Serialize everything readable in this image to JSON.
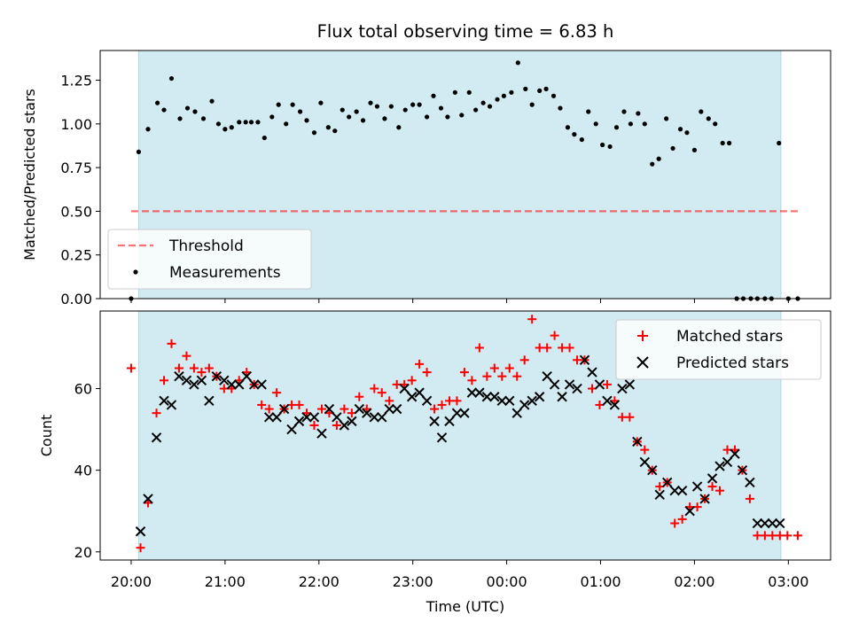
{
  "title": "Flux total observing time = 6.83 h",
  "colors": {
    "span": "#add8e6",
    "threshold": "#ff0000",
    "measurement": "#000000",
    "matched": "#ff0000",
    "predicted": "#000000"
  },
  "chart_data": [
    {
      "type": "scatter",
      "title": "Flux total observing time = 6.83 h",
      "xlabel": "",
      "ylabel": "Matched/Predicted stars",
      "ylim": [
        0,
        1.42
      ],
      "yticks": [
        0,
        0.25,
        0.5,
        0.75,
        1.0,
        1.25
      ],
      "ytick_labels": [
        "0.00",
        "0.25",
        "0.50",
        "0.75",
        "1.00",
        "1.25"
      ],
      "x_unit": "hours since 20:00 UTC",
      "xlim": [
        -0.33,
        7.45
      ],
      "xticks": [
        0,
        1,
        2,
        3,
        4,
        5,
        6,
        7
      ],
      "xtick_labels": [
        "20:00",
        "21:00",
        "22:00",
        "23:00",
        "00:00",
        "01:00",
        "02:00",
        "03:00"
      ],
      "shaded_span": [
        0.08,
        6.92
      ],
      "legend": {
        "position": "lower-left",
        "entries": [
          "Threshold",
          "Measurements"
        ]
      },
      "threshold": {
        "name": "Threshold",
        "value": 0.5,
        "x_range": [
          0,
          7.1
        ]
      },
      "series": [
        {
          "name": "Measurements",
          "x": [
            0.0,
            0.08,
            0.18,
            0.28,
            0.35,
            0.43,
            0.52,
            0.6,
            0.68,
            0.77,
            0.86,
            0.93,
            1.0,
            1.07,
            1.15,
            1.22,
            1.28,
            1.35,
            1.42,
            1.5,
            1.57,
            1.65,
            1.72,
            1.8,
            1.87,
            1.95,
            2.02,
            2.1,
            2.17,
            2.25,
            2.32,
            2.4,
            2.47,
            2.55,
            2.62,
            2.7,
            2.77,
            2.85,
            2.92,
            3.0,
            3.07,
            3.15,
            3.22,
            3.3,
            3.37,
            3.45,
            3.52,
            3.6,
            3.67,
            3.75,
            3.82,
            3.9,
            3.97,
            4.05,
            4.12,
            4.2,
            4.27,
            4.35,
            4.42,
            4.5,
            4.57,
            4.65,
            4.72,
            4.8,
            4.87,
            4.95,
            5.02,
            5.1,
            5.17,
            5.25,
            5.32,
            5.4,
            5.47,
            5.55,
            5.62,
            5.7,
            5.77,
            5.85,
            5.92,
            6.0,
            6.07,
            6.15,
            6.22,
            6.3,
            6.37,
            6.45,
            6.52,
            6.6,
            6.67,
            6.75,
            6.82,
            6.9,
            7.0,
            7.1
          ],
          "y": [
            0.0,
            0.84,
            0.97,
            1.12,
            1.08,
            1.26,
            1.03,
            1.09,
            1.07,
            1.03,
            1.13,
            1.0,
            0.97,
            0.98,
            1.01,
            1.01,
            1.01,
            1.01,
            0.92,
            1.04,
            1.11,
            1.0,
            1.11,
            1.07,
            1.02,
            0.95,
            1.12,
            0.98,
            0.96,
            1.08,
            1.04,
            1.07,
            1.02,
            1.12,
            1.1,
            1.03,
            1.1,
            0.98,
            1.08,
            1.11,
            1.11,
            1.04,
            1.16,
            1.09,
            1.04,
            1.18,
            1.05,
            1.18,
            1.08,
            1.12,
            1.1,
            1.14,
            1.16,
            1.18,
            1.35,
            1.2,
            1.11,
            1.19,
            1.2,
            1.16,
            1.09,
            0.98,
            0.94,
            0.91,
            1.07,
            1.0,
            0.88,
            0.87,
            0.98,
            1.07,
            1.0,
            1.06,
            1.0,
            0.77,
            0.8,
            1.03,
            0.86,
            0.97,
            0.95,
            0.85,
            1.07,
            1.03,
            1.0,
            0.89,
            0.89,
            0.0,
            0.0,
            0.0,
            0.0,
            0.0,
            0.0,
            0.89,
            0.0,
            0.0
          ]
        }
      ]
    },
    {
      "type": "scatter",
      "title": "",
      "xlabel": "Time (UTC)",
      "ylabel": "Count",
      "ylim": [
        18,
        79
      ],
      "yticks": [
        20,
        40,
        60
      ],
      "ytick_labels": [
        "20",
        "40",
        "60"
      ],
      "x_unit": "hours since 20:00 UTC",
      "xlim": [
        -0.33,
        7.45
      ],
      "xticks": [
        0,
        1,
        2,
        3,
        4,
        5,
        6,
        7
      ],
      "xtick_labels": [
        "20:00",
        "21:00",
        "22:00",
        "23:00",
        "00:00",
        "01:00",
        "02:00",
        "03:00"
      ],
      "shaded_span": [
        0.08,
        6.92
      ],
      "legend": {
        "position": "top-right",
        "entries": [
          "Matched stars",
          "Predicted stars"
        ]
      },
      "series": [
        {
          "name": "Matched stars",
          "marker": "+",
          "x": [
            0.0,
            0.1,
            0.18,
            0.27,
            0.35,
            0.43,
            0.51,
            0.59,
            0.67,
            0.75,
            0.83,
            0.91,
            0.99,
            1.07,
            1.15,
            1.23,
            1.31,
            1.39,
            1.47,
            1.55,
            1.63,
            1.71,
            1.79,
            1.87,
            1.95,
            2.03,
            2.11,
            2.19,
            2.27,
            2.35,
            2.43,
            2.51,
            2.59,
            2.67,
            2.75,
            2.83,
            2.91,
            2.99,
            3.07,
            3.15,
            3.23,
            3.31,
            3.39,
            3.47,
            3.55,
            3.63,
            3.71,
            3.79,
            3.87,
            3.95,
            4.03,
            4.11,
            4.19,
            4.27,
            4.35,
            4.43,
            4.51,
            4.59,
            4.67,
            4.75,
            4.83,
            4.91,
            4.99,
            5.07,
            5.15,
            5.23,
            5.31,
            5.39,
            5.47,
            5.55,
            5.63,
            5.71,
            5.79,
            5.87,
            5.95,
            6.03,
            6.11,
            6.19,
            6.27,
            6.35,
            6.43,
            6.51,
            6.59,
            6.67,
            6.75,
            6.83,
            6.91,
            6.99,
            7.1
          ],
          "y": [
            65,
            21,
            32,
            54,
            62,
            71,
            65,
            68,
            65,
            64,
            65,
            63,
            60,
            60,
            62,
            64,
            61,
            56,
            55,
            59,
            55,
            56,
            56,
            54,
            51,
            55,
            54,
            51,
            55,
            54,
            58,
            55,
            60,
            59,
            57,
            61,
            61,
            62,
            66,
            64,
            55,
            56,
            57,
            57,
            64,
            62,
            70,
            63,
            65,
            63,
            65,
            63,
            67,
            77,
            70,
            70,
            73,
            70,
            70,
            67,
            67,
            60,
            56,
            61,
            57,
            53,
            53,
            47,
            45,
            40,
            36,
            37,
            27,
            28,
            31,
            31,
            33,
            36,
            35,
            45,
            45,
            40,
            33,
            24,
            24,
            24,
            24,
            24,
            24
          ]
        },
        {
          "name": "Predicted stars",
          "marker": "x",
          "x": [
            0.1,
            0.18,
            0.27,
            0.35,
            0.43,
            0.51,
            0.59,
            0.67,
            0.75,
            0.83,
            0.91,
            0.99,
            1.07,
            1.15,
            1.23,
            1.31,
            1.39,
            1.47,
            1.55,
            1.63,
            1.71,
            1.79,
            1.87,
            1.95,
            2.03,
            2.11,
            2.19,
            2.27,
            2.35,
            2.43,
            2.51,
            2.59,
            2.67,
            2.75,
            2.83,
            2.91,
            2.99,
            3.07,
            3.15,
            3.23,
            3.31,
            3.39,
            3.47,
            3.55,
            3.63,
            3.71,
            3.79,
            3.87,
            3.95,
            4.03,
            4.11,
            4.19,
            4.27,
            4.35,
            4.43,
            4.51,
            4.59,
            4.67,
            4.75,
            4.83,
            4.91,
            4.99,
            5.07,
            5.15,
            5.23,
            5.31,
            5.39,
            5.47,
            5.55,
            5.63,
            5.71,
            5.79,
            5.87,
            5.95,
            6.03,
            6.11,
            6.19,
            6.27,
            6.35,
            6.43,
            6.51,
            6.59,
            6.67,
            6.75,
            6.83,
            6.91
          ],
          "y": [
            25,
            33,
            48,
            57,
            56,
            63,
            62,
            61,
            62,
            57,
            63,
            62,
            61,
            61,
            63,
            61,
            61,
            53,
            53,
            55,
            50,
            52,
            53,
            53,
            49,
            55,
            53,
            51,
            52,
            55,
            54,
            53,
            53,
            55,
            55,
            60,
            58,
            59,
            57,
            52,
            48,
            52,
            54,
            54,
            59,
            59,
            58,
            58,
            57,
            57,
            54,
            56,
            57,
            58,
            63,
            61,
            58,
            61,
            60,
            67,
            64,
            61,
            57,
            56,
            60,
            61,
            47,
            42,
            40,
            34,
            37,
            35,
            35,
            30,
            36,
            33,
            38,
            41,
            42,
            44,
            40,
            37,
            27,
            27,
            27,
            27
          ]
        }
      ]
    }
  ]
}
